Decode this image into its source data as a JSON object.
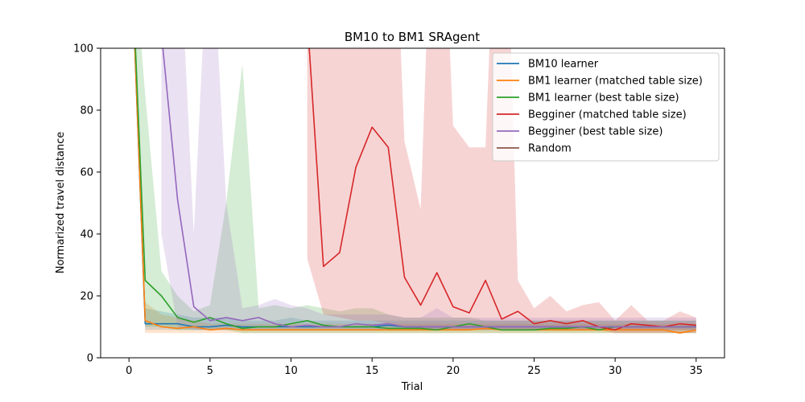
{
  "chart_data": {
    "type": "line",
    "title": "BM10 to BM1  SRAgent",
    "xlabel": "Trial",
    "ylabel": "Normarized travel distance",
    "xlim": [
      -1.75,
      36.75
    ],
    "ylim": [
      0,
      100
    ],
    "xticks": [
      0,
      5,
      10,
      15,
      20,
      25,
      30,
      35
    ],
    "yticks": [
      0,
      20,
      40,
      60,
      80,
      100
    ],
    "grid": false,
    "legend_position": "top-right",
    "series": [
      {
        "name": "BM10 learner",
        "color": "#1f77b4",
        "x": [
          0,
          1,
          2,
          3,
          4,
          5,
          6,
          7,
          8,
          9,
          10,
          11,
          12,
          13,
          14,
          15,
          16,
          17,
          18,
          19,
          20,
          21,
          22,
          23,
          24,
          25,
          26,
          27,
          28,
          29,
          30,
          31,
          32,
          33,
          34,
          35
        ],
        "values": [
          150,
          11,
          11,
          11,
          10,
          10,
          10.5,
          10,
          10,
          10,
          10,
          10,
          10,
          10,
          10,
          10,
          10.5,
          10,
          10,
          10,
          10,
          10,
          10,
          10,
          10,
          10,
          10,
          10,
          10,
          10,
          10,
          10,
          10,
          10,
          10,
          10
        ],
        "band_upper": [
          150,
          16,
          15,
          14,
          13,
          13,
          13,
          12,
          12,
          12,
          13,
          12,
          12,
          12,
          12,
          12,
          12,
          12,
          12,
          12,
          12,
          12,
          12,
          12,
          12,
          12,
          12,
          12,
          12,
          12,
          12,
          12,
          12,
          12,
          12,
          12
        ],
        "band_lower": [
          150,
          9,
          9,
          9,
          9,
          9,
          9,
          9,
          9,
          9,
          9,
          9,
          9,
          9,
          9,
          9,
          9,
          9,
          9,
          9,
          9,
          9,
          9,
          9,
          9,
          9,
          9,
          9,
          9,
          9,
          9,
          9,
          9,
          9,
          9,
          9
        ]
      },
      {
        "name": "BM1 learner (matched table size)",
        "color": "#ff7f0e",
        "x": [
          0,
          1,
          2,
          3,
          4,
          5,
          6,
          7,
          8,
          9,
          10,
          11,
          12,
          13,
          14,
          15,
          16,
          17,
          18,
          19,
          20,
          21,
          22,
          23,
          24,
          25,
          26,
          27,
          28,
          29,
          30,
          31,
          32,
          33,
          34,
          35
        ],
        "values": [
          150,
          12,
          10,
          9.5,
          10,
          9,
          9.5,
          9,
          9,
          9,
          9,
          9,
          9,
          9,
          9,
          9,
          9,
          9,
          9,
          9,
          9,
          9,
          9.5,
          9,
          9,
          9,
          9,
          9,
          9,
          9,
          9,
          9,
          9,
          9,
          8,
          9
        ],
        "band_upper": [
          150,
          18,
          14,
          13,
          12,
          11,
          11,
          11,
          11,
          11,
          11,
          11,
          11,
          11,
          11,
          11,
          11,
          11,
          11,
          11,
          11,
          11,
          11,
          11,
          11,
          11,
          11,
          11,
          11,
          11,
          11,
          11,
          11,
          11,
          11,
          11
        ],
        "band_lower": [
          150,
          8,
          8,
          8,
          8,
          8,
          8,
          8,
          8,
          8,
          8,
          8,
          8,
          8,
          8,
          8,
          8,
          8,
          8,
          8,
          8,
          8,
          8,
          8,
          8,
          8,
          8,
          8,
          8,
          8,
          8,
          8,
          8,
          8,
          8,
          8
        ]
      },
      {
        "name": "BM1 learner (best table size)",
        "color": "#2ca02c",
        "x": [
          0,
          1,
          2,
          3,
          4,
          5,
          6,
          7,
          8,
          9,
          10,
          11,
          12,
          13,
          14,
          15,
          16,
          17,
          18,
          19,
          20,
          21,
          22,
          23,
          24,
          25,
          26,
          27,
          28,
          29,
          30,
          31,
          32,
          33,
          34,
          35
        ],
        "values": [
          150,
          25,
          20,
          13,
          11.5,
          13,
          11,
          9.5,
          10,
          10,
          11,
          12,
          10.5,
          10,
          10,
          10,
          9.5,
          9.5,
          9.5,
          9,
          10,
          11,
          10,
          9,
          9,
          9,
          9.5,
          9.5,
          10,
          9,
          10,
          10,
          10,
          10,
          10,
          10
        ],
        "band_upper": [
          150,
          85,
          28,
          20,
          15,
          17,
          50,
          95,
          16,
          17,
          16,
          17,
          16,
          15,
          16,
          16,
          14,
          13,
          13,
          13,
          13,
          13,
          12,
          12,
          12,
          12,
          12,
          12,
          12,
          12,
          12,
          12,
          12,
          12,
          12,
          12
        ],
        "band_lower": [
          150,
          10,
          10,
          9,
          9,
          9,
          9,
          8,
          8,
          8,
          8,
          8,
          8,
          8,
          8,
          8,
          8,
          8,
          8,
          8,
          8,
          8,
          8,
          8,
          8,
          8,
          8,
          8,
          8,
          8,
          8,
          8,
          8,
          8,
          8,
          8
        ]
      },
      {
        "name": "Begginer (matched table size)",
        "color": "#d62728",
        "x": [
          11,
          12,
          13,
          14,
          15,
          16,
          17,
          18,
          19,
          20,
          21,
          22,
          23,
          24,
          25,
          26,
          27,
          28,
          29,
          30,
          31,
          32,
          33,
          34,
          35
        ],
        "values": [
          110,
          29.5,
          34,
          61.5,
          74.5,
          68,
          26,
          17,
          27.5,
          16.5,
          14.5,
          25,
          12.5,
          15,
          11,
          12,
          11,
          12,
          10,
          9,
          11,
          10.5,
          10,
          11,
          10.5
        ],
        "band_upper": [
          200,
          200,
          200,
          200,
          200,
          200,
          70,
          48,
          200,
          75,
          68,
          68,
          200,
          25,
          16,
          20,
          15,
          17,
          18,
          12,
          17,
          12,
          12,
          15,
          13
        ],
        "band_lower": [
          32,
          14,
          13,
          12,
          12,
          11,
          10,
          9,
          9,
          9,
          9,
          9,
          9,
          9,
          9,
          9,
          9,
          9,
          9,
          8,
          8,
          8,
          8,
          8,
          8
        ]
      },
      {
        "name": "Begginer (best table size)",
        "color": "#9467bd",
        "x": [
          2,
          3,
          4,
          5,
          6,
          7,
          8,
          9,
          10,
          11,
          12,
          13,
          14,
          15,
          16,
          17,
          18,
          19,
          20,
          21,
          22,
          23,
          24,
          25,
          26,
          27,
          28,
          29,
          30,
          31,
          32,
          33,
          34,
          35
        ],
        "values": [
          105,
          51,
          16.5,
          12,
          13,
          12,
          13,
          11,
          10,
          10.5,
          10,
          10,
          11,
          10.5,
          11,
          10,
          10,
          10,
          10,
          10,
          10,
          10,
          10,
          10,
          10,
          10,
          10,
          10,
          10,
          10,
          10,
          10,
          10,
          10
        ],
        "band_upper": [
          160,
          150,
          40,
          150,
          50,
          16,
          17,
          19,
          17,
          16,
          14,
          14,
          14,
          14,
          14,
          13,
          13,
          16,
          13,
          13,
          13,
          13,
          13,
          13,
          13,
          13,
          13,
          13,
          13,
          13,
          13,
          13,
          13,
          13
        ],
        "band_lower": [
          40,
          10,
          9,
          9,
          9,
          9,
          9,
          9,
          9,
          9,
          9,
          9,
          9,
          9,
          9,
          9,
          9,
          9,
          9,
          9,
          9,
          9,
          9,
          9,
          9,
          9,
          9,
          9,
          9,
          9,
          9,
          9,
          9,
          9
        ]
      },
      {
        "name": "Random",
        "color": "#8c564b",
        "x": [],
        "values": [],
        "band_upper": [],
        "band_lower": []
      }
    ]
  }
}
